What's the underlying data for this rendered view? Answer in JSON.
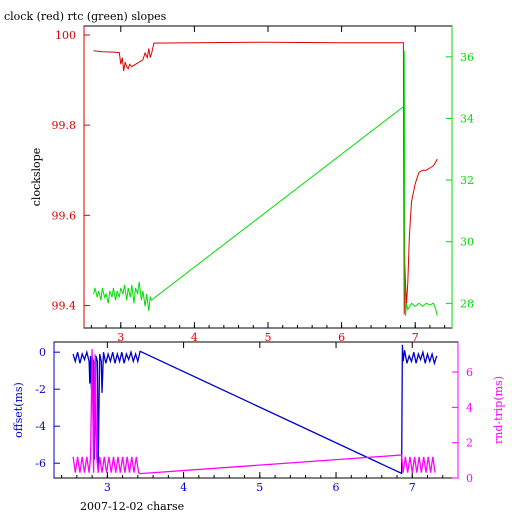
{
  "title": "clock (red) rtc (green) slopes",
  "footer_label": "2007-12-02 charse",
  "colors": {
    "axis": "#000000",
    "clock": "#e00000",
    "rtc": "#00dd00",
    "offset": "#0000cc",
    "roundtrip": "#ff00ff"
  },
  "chart_data": [
    {
      "type": "line",
      "title": "clock (red) rtc (green) slopes",
      "xlabel": "",
      "ylabel": "clockslope",
      "y2label": "",
      "xlim": [
        2.5,
        7.5
      ],
      "ylim": [
        99.35,
        100.02
      ],
      "y2lim": [
        27.2,
        37.0
      ],
      "grid": false,
      "xticks": [
        "3",
        "4",
        "5",
        "6",
        "7"
      ],
      "yticks": [
        "99.4",
        "99.6",
        "99.8",
        "100"
      ],
      "y2ticks": [
        "28",
        "30",
        "32",
        "34",
        "36"
      ],
      "series": [
        {
          "name": "clock",
          "axis": "left",
          "color": "#e00000",
          "x": [
            2.63,
            2.75,
            2.9,
            2.98,
            3.0,
            3.02,
            3.04,
            3.06,
            3.08,
            3.1,
            3.12,
            3.15,
            3.2,
            3.25,
            3.3,
            3.33,
            3.36,
            3.38,
            3.4,
            3.42,
            3.44,
            3.45,
            4.0,
            5.0,
            6.0,
            6.82,
            6.84,
            6.85,
            6.86,
            6.88,
            6.9,
            6.92,
            6.95,
            7.0,
            7.05,
            7.1,
            7.15,
            7.2,
            7.25,
            7.3
          ],
          "y": [
            99.965,
            99.963,
            99.962,
            99.961,
            99.935,
            99.95,
            99.92,
            99.94,
            99.93,
            99.925,
            99.935,
            99.93,
            99.935,
            99.94,
            99.945,
            99.96,
            99.95,
            99.97,
            99.95,
            99.96,
            99.975,
            99.982,
            99.983,
            99.984,
            99.983,
            99.983,
            99.983,
            99.38,
            99.49,
            99.4,
            99.45,
            99.55,
            99.63,
            99.67,
            99.695,
            99.7,
            99.7,
            99.705,
            99.71,
            99.725
          ]
        },
        {
          "name": "rtc",
          "axis": "right",
          "color": "#00dd00",
          "x": [
            2.63,
            2.65,
            2.68,
            2.7,
            2.73,
            2.75,
            2.78,
            2.8,
            2.83,
            2.85,
            2.88,
            2.9,
            2.93,
            2.95,
            2.98,
            3.0,
            3.03,
            3.05,
            3.08,
            3.1,
            3.13,
            3.15,
            3.18,
            3.2,
            3.23,
            3.25,
            3.28,
            3.3,
            3.33,
            3.35,
            3.38,
            3.4,
            3.42,
            3.44,
            6.85,
            6.85,
            6.86,
            6.87,
            6.88,
            6.9,
            6.95,
            7.0,
            7.05,
            7.1,
            7.15,
            7.2,
            7.25,
            7.28,
            7.3
          ],
          "y": [
            28.3,
            28.5,
            28.2,
            28.4,
            28.1,
            28.5,
            28.2,
            28.3,
            28.0,
            28.4,
            28.2,
            28.5,
            28.1,
            28.4,
            28.2,
            28.5,
            28.3,
            28.6,
            28.1,
            28.5,
            28.2,
            28.6,
            28.0,
            28.5,
            28.3,
            28.7,
            28.1,
            28.4,
            27.9,
            28.3,
            27.75,
            28.2,
            28.1,
            28.15,
            34.4,
            36.2,
            28.5,
            27.6,
            28.0,
            27.8,
            28.0,
            27.9,
            28.0,
            27.9,
            28.0,
            27.95,
            28.0,
            27.8,
            27.6
          ]
        }
      ]
    },
    {
      "type": "line",
      "title": "",
      "xlabel": "2007-12-02 charse",
      "ylabel": "offset(ms)",
      "y2label": "rnd-trip(ms)",
      "xlim": [
        2.3,
        7.6
      ],
      "ylim": [
        -6.8,
        0.55
      ],
      "y2lim": [
        0,
        7.7
      ],
      "grid": false,
      "xticks": [
        "3",
        "4",
        "5",
        "6",
        "7"
      ],
      "yticks": [
        "0",
        "-2",
        "-4",
        "-6"
      ],
      "y2ticks": [
        "0",
        "2",
        "4",
        "6"
      ],
      "series": [
        {
          "name": "offset",
          "axis": "left",
          "color": "#0000cc",
          "x": [
            2.55,
            2.58,
            2.61,
            2.64,
            2.67,
            2.7,
            2.73,
            2.76,
            2.77,
            2.78,
            2.79,
            2.8,
            2.82,
            2.83,
            2.85,
            2.87,
            2.88,
            2.9,
            2.92,
            2.93,
            2.95,
            2.98,
            3.01,
            3.04,
            3.07,
            3.1,
            3.13,
            3.16,
            3.19,
            3.22,
            3.25,
            3.28,
            3.31,
            3.34,
            3.37,
            3.4,
            3.43,
            6.86,
            6.87,
            6.88,
            6.9,
            6.93,
            6.96,
            6.99,
            7.02,
            7.05,
            7.08,
            7.11,
            7.14,
            7.17,
            7.2,
            7.23,
            7.26,
            7.29,
            7.32
          ],
          "y": [
            -0.1,
            -0.5,
            0.0,
            -0.6,
            -0.1,
            -0.4,
            0.0,
            -0.5,
            -1.7,
            -0.2,
            -2.0,
            -0.3,
            -0.5,
            -5.8,
            -0.2,
            -0.5,
            -6.2,
            -0.1,
            -0.5,
            -2.2,
            0.0,
            -0.6,
            -0.1,
            -0.5,
            0.0,
            -0.6,
            -0.1,
            -0.5,
            0.0,
            -0.6,
            -0.1,
            -0.4,
            0.0,
            -0.5,
            -0.1,
            -0.5,
            0.05,
            -6.55,
            0.4,
            -0.5,
            0.1,
            -0.6,
            -0.2,
            -0.5,
            0.0,
            -0.6,
            -0.1,
            -0.4,
            0.0,
            -0.6,
            -0.1,
            -0.5,
            -0.1,
            -0.6,
            -0.2
          ]
        },
        {
          "name": "rnd-trip",
          "axis": "right",
          "color": "#ff00ff",
          "x": [
            2.55,
            2.58,
            2.61,
            2.64,
            2.67,
            2.7,
            2.73,
            2.76,
            2.78,
            2.8,
            2.82,
            2.84,
            2.86,
            2.88,
            2.9,
            2.93,
            2.96,
            2.99,
            3.02,
            3.05,
            3.08,
            3.11,
            3.14,
            3.17,
            3.2,
            3.23,
            3.26,
            3.29,
            3.32,
            3.35,
            3.38,
            3.41,
            3.43,
            6.86,
            6.88,
            6.91,
            6.94,
            6.97,
            7.0,
            7.03,
            7.06,
            7.09,
            7.12,
            7.15,
            7.18,
            7.21,
            7.24,
            7.27,
            7.3
          ],
          "y": [
            1.2,
            0.3,
            1.2,
            0.3,
            1.2,
            0.3,
            1.2,
            0.3,
            1.2,
            7.3,
            0.3,
            7.0,
            1.2,
            0.3,
            1.2,
            0.3,
            1.2,
            0.3,
            1.2,
            0.3,
            1.2,
            0.3,
            1.2,
            0.3,
            1.2,
            0.3,
            1.2,
            0.3,
            1.2,
            0.3,
            1.2,
            0.3,
            0.25,
            1.3,
            0.3,
            1.2,
            0.3,
            1.2,
            0.3,
            1.2,
            0.3,
            1.2,
            0.3,
            1.2,
            0.3,
            1.2,
            0.3,
            1.2,
            0.3
          ]
        }
      ]
    }
  ]
}
